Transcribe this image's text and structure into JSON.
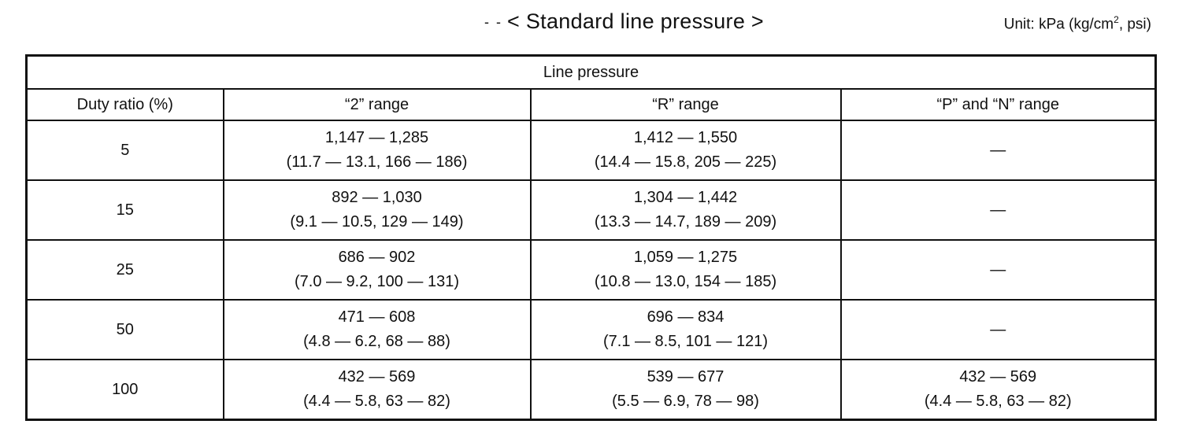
{
  "title": {
    "prefix": "- -",
    "text": "< Standard line pressure >"
  },
  "unit_note": {
    "text_before": "Unit: kPa (kg/cm",
    "superscript": "2",
    "text_after": ", psi)"
  },
  "table": {
    "group_header": "Line pressure",
    "columns": [
      "Duty ratio (%)",
      "“2” range",
      "“R” range",
      "“P” and “N” range"
    ],
    "rows": [
      {
        "duty": "5",
        "range_2": {
          "kpa": "1,147 — 1,285",
          "alt": "(11.7 — 13.1, 166 — 186)"
        },
        "range_r": {
          "kpa": "1,412 — 1,550",
          "alt": "(14.4 — 15.8, 205 — 225)"
        },
        "range_pn": {
          "kpa": "—",
          "alt": ""
        }
      },
      {
        "duty": "15",
        "range_2": {
          "kpa": "892 — 1,030",
          "alt": "(9.1 — 10.5, 129 — 149)"
        },
        "range_r": {
          "kpa": "1,304 — 1,442",
          "alt": "(13.3 — 14.7, 189 — 209)"
        },
        "range_pn": {
          "kpa": "—",
          "alt": ""
        }
      },
      {
        "duty": "25",
        "range_2": {
          "kpa": "686 — 902",
          "alt": "(7.0 — 9.2, 100 — 131)"
        },
        "range_r": {
          "kpa": "1,059 — 1,275",
          "alt": "(10.8 — 13.0, 154 — 185)"
        },
        "range_pn": {
          "kpa": "—",
          "alt": ""
        }
      },
      {
        "duty": "50",
        "range_2": {
          "kpa": "471 — 608",
          "alt": "(4.8 — 6.2, 68 — 88)"
        },
        "range_r": {
          "kpa": "696 — 834",
          "alt": "(7.1 — 8.5, 101 — 121)"
        },
        "range_pn": {
          "kpa": "—",
          "alt": ""
        }
      },
      {
        "duty": "100",
        "range_2": {
          "kpa": "432 — 569",
          "alt": "(4.4 — 5.8, 63 — 82)"
        },
        "range_r": {
          "kpa": "539 — 677",
          "alt": "(5.5 — 6.9, 78 — 98)"
        },
        "range_pn": {
          "kpa": "432 — 569",
          "alt": "(4.4 — 5.8, 63 — 82)"
        }
      }
    ]
  }
}
